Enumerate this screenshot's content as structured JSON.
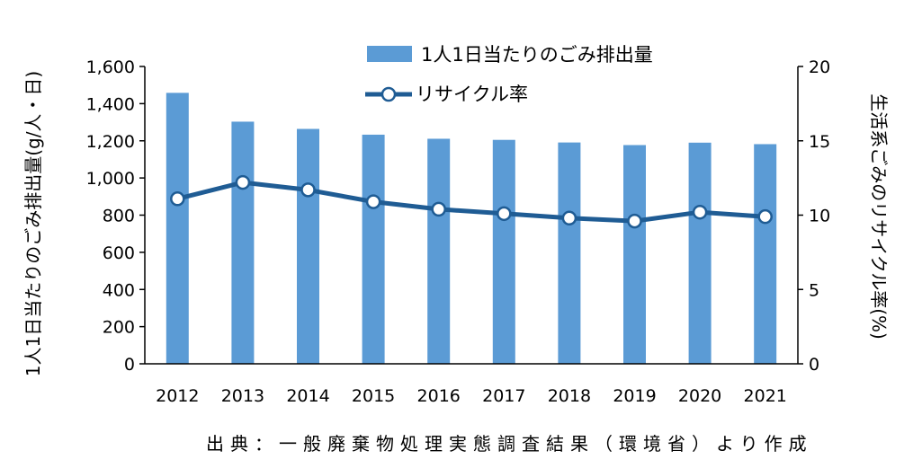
{
  "chart_data": {
    "type": "bar",
    "categories": [
      "2012",
      "2013",
      "2014",
      "2015",
      "2016",
      "2017",
      "2018",
      "2019",
      "2020",
      "2021"
    ],
    "series": [
      {
        "name": "1人1日当たりのごみ排出量",
        "type": "bar",
        "axis": "left",
        "color": "#5b9bd5",
        "values": [
          1458,
          1303,
          1264,
          1233,
          1211,
          1205,
          1191,
          1177,
          1190,
          1182
        ]
      },
      {
        "name": "リサイクル率",
        "type": "line",
        "axis": "right",
        "color": "#1f5c94",
        "marker_fill": "#ffffff",
        "values": [
          11.1,
          12.2,
          11.7,
          10.9,
          10.4,
          10.1,
          9.8,
          9.6,
          10.2,
          9.9
        ]
      }
    ],
    "ylabel": "1人1日当たりのごみ排出量(g/人・日)",
    "ylabel_right": "生活系ごみのリサイクル率(%)",
    "ylim": [
      0,
      1600
    ],
    "yticks": [
      "0",
      "200",
      "400",
      "600",
      "800",
      "1,000",
      "1,200",
      "1,400",
      "1,600"
    ],
    "ylim_right": [
      0,
      20
    ],
    "yticks_right": [
      "0",
      "5",
      "10",
      "15",
      "20"
    ],
    "grid": false,
    "legend_position": "top"
  },
  "legend": {
    "bar_label": "1人1日当たりのごみ排出量",
    "line_label": "リサイクル率"
  },
  "source_note": "出典：一般廃棄物処理実態調査結果（環境省）より作成"
}
